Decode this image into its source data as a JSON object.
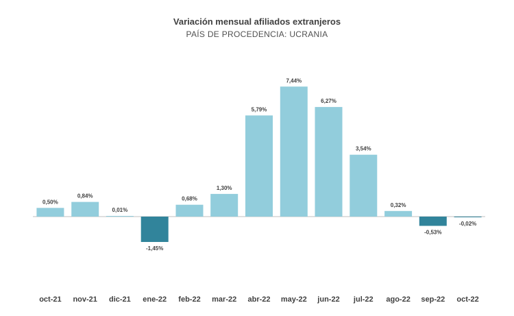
{
  "chart_data": {
    "type": "bar",
    "title": "Variación mensual afiliados extranjeros",
    "subtitle": "PAÍS DE PROCEDENCIA: UCRANIA",
    "categories": [
      "oct-21",
      "nov-21",
      "dic-21",
      "ene-22",
      "feb-22",
      "mar-22",
      "abr-22",
      "may-22",
      "jun-22",
      "jul-22",
      "ago-22",
      "sep-22",
      "oct-22"
    ],
    "values": [
      0.5,
      0.84,
      0.01,
      -1.45,
      0.68,
      1.3,
      5.79,
      7.44,
      6.27,
      3.54,
      0.32,
      -0.53,
      -0.02
    ],
    "data_labels": [
      "0,50%",
      "0,84%",
      "0,01%",
      "-1,45%",
      "0,68%",
      "1,30%",
      "5,79%",
      "7,44%",
      "6,27%",
      "3,54%",
      "0,32%",
      "-0,53%",
      "-0,02%"
    ],
    "ylim": [
      -2.5,
      8.5
    ],
    "xlabel": "",
    "ylabel": "",
    "grid": false,
    "legend": "none",
    "colors": {
      "positive": "#92cddc",
      "negative": "#31849b",
      "axis": "#bfbfbf"
    }
  }
}
